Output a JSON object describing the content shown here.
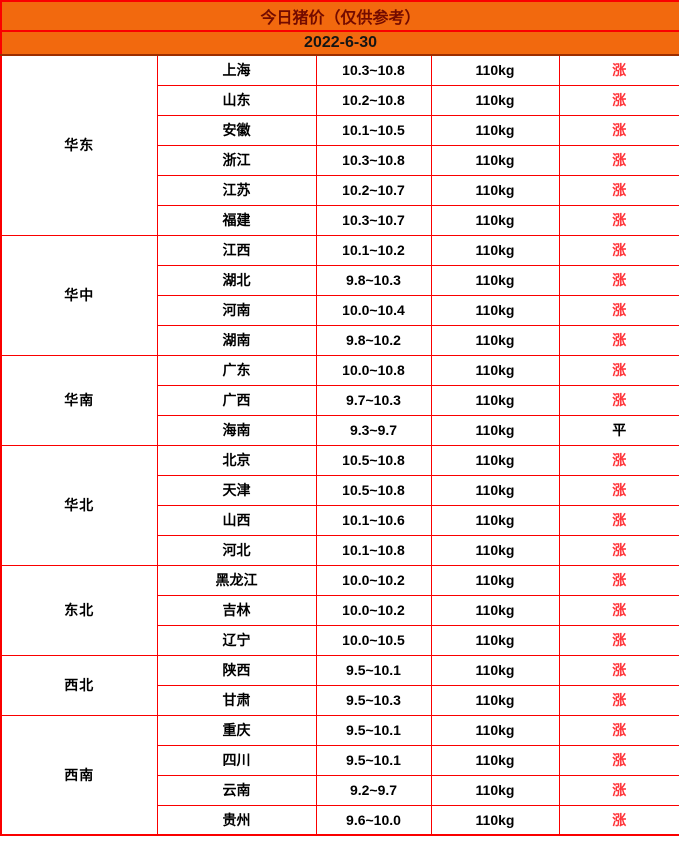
{
  "chart_data": {
    "type": "table",
    "title": "今日猪价（仅供参考）",
    "date": "2022-6-30",
    "weight_basis": "110kg",
    "trend_legend": {
      "up": "涨",
      "flat": "平"
    },
    "groups": [
      {
        "region": "华东",
        "rows": [
          {
            "province": "上海",
            "price": "10.3~10.8",
            "weight": "110kg",
            "trend": "涨",
            "trend_type": "up"
          },
          {
            "province": "山东",
            "price": "10.2~10.8",
            "weight": "110kg",
            "trend": "涨",
            "trend_type": "up"
          },
          {
            "province": "安徽",
            "price": "10.1~10.5",
            "weight": "110kg",
            "trend": "涨",
            "trend_type": "up"
          },
          {
            "province": "浙江",
            "price": "10.3~10.8",
            "weight": "110kg",
            "trend": "涨",
            "trend_type": "up"
          },
          {
            "province": "江苏",
            "price": "10.2~10.7",
            "weight": "110kg",
            "trend": "涨",
            "trend_type": "up"
          },
          {
            "province": "福建",
            "price": "10.3~10.7",
            "weight": "110kg",
            "trend": "涨",
            "trend_type": "up"
          }
        ]
      },
      {
        "region": "华中",
        "rows": [
          {
            "province": "江西",
            "price": "10.1~10.2",
            "weight": "110kg",
            "trend": "涨",
            "trend_type": "up"
          },
          {
            "province": "湖北",
            "price": "9.8~10.3",
            "weight": "110kg",
            "trend": "涨",
            "trend_type": "up"
          },
          {
            "province": "河南",
            "price": "10.0~10.4",
            "weight": "110kg",
            "trend": "涨",
            "trend_type": "up"
          },
          {
            "province": "湖南",
            "price": "9.8~10.2",
            "weight": "110kg",
            "trend": "涨",
            "trend_type": "up"
          }
        ]
      },
      {
        "region": "华南",
        "rows": [
          {
            "province": "广东",
            "price": "10.0~10.8",
            "weight": "110kg",
            "trend": "涨",
            "trend_type": "up"
          },
          {
            "province": "广西",
            "price": "9.7~10.3",
            "weight": "110kg",
            "trend": "涨",
            "trend_type": "up"
          },
          {
            "province": "海南",
            "price": "9.3~9.7",
            "weight": "110kg",
            "trend": "平",
            "trend_type": "flat"
          }
        ]
      },
      {
        "region": "华北",
        "rows": [
          {
            "province": "北京",
            "price": "10.5~10.8",
            "weight": "110kg",
            "trend": "涨",
            "trend_type": "up"
          },
          {
            "province": "天津",
            "price": "10.5~10.8",
            "weight": "110kg",
            "trend": "涨",
            "trend_type": "up"
          },
          {
            "province": "山西",
            "price": "10.1~10.6",
            "weight": "110kg",
            "trend": "涨",
            "trend_type": "up"
          },
          {
            "province": "河北",
            "price": "10.1~10.8",
            "weight": "110kg",
            "trend": "涨",
            "trend_type": "up"
          }
        ]
      },
      {
        "region": "东北",
        "rows": [
          {
            "province": "黑龙江",
            "price": "10.0~10.2",
            "weight": "110kg",
            "trend": "涨",
            "trend_type": "up"
          },
          {
            "province": "吉林",
            "price": "10.0~10.2",
            "weight": "110kg",
            "trend": "涨",
            "trend_type": "up"
          },
          {
            "province": "辽宁",
            "price": "10.0~10.5",
            "weight": "110kg",
            "trend": "涨",
            "trend_type": "up"
          }
        ]
      },
      {
        "region": "西北",
        "rows": [
          {
            "province": "陕西",
            "price": "9.5~10.1",
            "weight": "110kg",
            "trend": "涨",
            "trend_type": "up"
          },
          {
            "province": "甘肃",
            "price": "9.5~10.3",
            "weight": "110kg",
            "trend": "涨",
            "trend_type": "up"
          }
        ]
      },
      {
        "region": "西南",
        "rows": [
          {
            "province": "重庆",
            "price": "9.5~10.1",
            "weight": "110kg",
            "trend": "涨",
            "trend_type": "up"
          },
          {
            "province": "四川",
            "price": "9.5~10.1",
            "weight": "110kg",
            "trend": "涨",
            "trend_type": "up"
          },
          {
            "province": "云南",
            "price": "9.2~9.7",
            "weight": "110kg",
            "trend": "涨",
            "trend_type": "up"
          },
          {
            "province": "贵州",
            "price": "9.6~10.0",
            "weight": "110kg",
            "trend": "涨",
            "trend_type": "up"
          }
        ]
      }
    ]
  },
  "colors": {
    "header_orange": "#F2690E",
    "border_red": "#FA0000",
    "title_dark_red": "#730B00",
    "trend_up_red": "#FF3237",
    "header_bottom_dark": "#9C2E00",
    "text_black": "#000000"
  }
}
